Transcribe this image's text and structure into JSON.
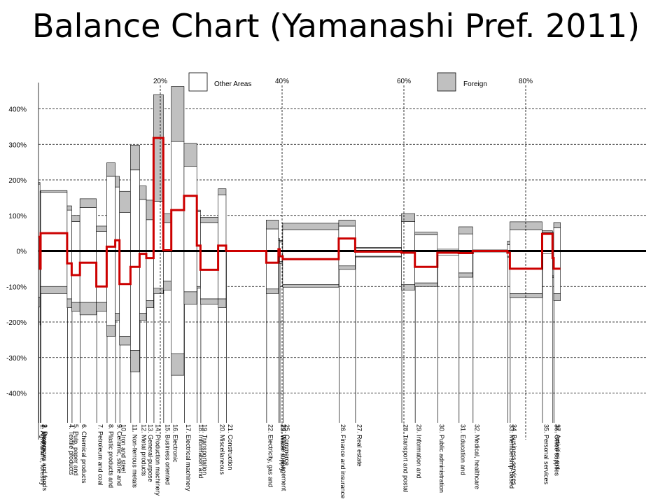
{
  "title": "Balance Chart (Yamanashi Pref. 2011)",
  "chart_data": {
    "type": "bar",
    "y_axis": {
      "ticks": [
        400,
        300,
        200,
        100,
        0,
        -100,
        -200,
        -300,
        -400
      ],
      "tick_labels": [
        "400%",
        "300%",
        "200%",
        "100%",
        "0%",
        "-100%",
        "-200%",
        "-300%",
        "-400%"
      ],
      "ylim": [
        -450,
        450
      ]
    },
    "x_axis": {
      "share_markers": [
        20,
        40,
        60,
        80
      ],
      "share_marker_labels": [
        "20%",
        "40%",
        "60%",
        "80%"
      ]
    },
    "legend": {
      "entries": [
        {
          "name": "Other Areas",
          "color": "#ffffff"
        },
        {
          "name": "Foreign",
          "color": "#c0c0c0"
        }
      ],
      "placement": "top"
    },
    "colors": {
      "balance_line": "#cc0000",
      "foreign": "#c0c0c0",
      "other_areas": "#ffffff",
      "axis": "#000000"
    },
    "series": [
      {
        "role": "other_areas_export_import"
      },
      {
        "role": "foreign_export_import"
      },
      {
        "role": "net_balance_line"
      }
    ],
    "sectors": [
      {
        "label": "1. Agriculture, forestry",
        "share": [
          0.0,
          0.25
        ],
        "oe": 188,
        "fe": 5,
        "oi": -130,
        "fi": -28,
        "net": 40
      },
      {
        "label": "2. Mining",
        "share": [
          0.25,
          0.35
        ],
        "oe": 168,
        "fe": 0,
        "oi": -200,
        "fi": -8,
        "net": -50
      },
      {
        "label": "3. Beverages and foods",
        "share": [
          0.35,
          4.7
        ],
        "oe": 165,
        "fe": 5,
        "oi": -100,
        "fi": -20,
        "net": 50
      },
      {
        "label": "4. Textile products",
        "share": [
          4.7,
          5.45
        ],
        "oe": 115,
        "fe": 12,
        "oi": -135,
        "fi": -25,
        "net": -35
      },
      {
        "label": "5. Pulp, paper and",
        "share": [
          5.45,
          6.8
        ],
        "oe": 83,
        "fe": 17,
        "oi": -145,
        "fi": -25,
        "net": -68
      },
      {
        "label": "6. Chemical products",
        "share": [
          6.8,
          9.5
        ],
        "oe": 122,
        "fe": 25,
        "oi": -145,
        "fi": -35,
        "net": -33
      },
      {
        "label": "7. Petroleum and coal",
        "share": [
          9.5,
          11.2
        ],
        "oe": 55,
        "fe": 15,
        "oi": -145,
        "fi": -25,
        "net": -100
      },
      {
        "label": "8. Plastic products and",
        "share": [
          11.2,
          12.6
        ],
        "oe": 210,
        "fe": 38,
        "oi": -210,
        "fi": -30,
        "net": 12
      },
      {
        "label": "9. Ceramic, stone and",
        "share": [
          12.6,
          13.3
        ],
        "oe": 180,
        "fe": 30,
        "oi": -175,
        "fi": -20,
        "net": 30
      },
      {
        "label": "10. Iron and steel",
        "share": [
          13.3,
          15.1
        ],
        "oe": 108,
        "fe": 60,
        "oi": -240,
        "fi": -25,
        "net": -93
      },
      {
        "label": "11. Non-ferrous metals",
        "share": [
          15.1,
          16.6
        ],
        "oe": 228,
        "fe": 70,
        "oi": -280,
        "fi": -60,
        "net": -45
      },
      {
        "label": "12. Metal products",
        "share": [
          16.6,
          17.7
        ],
        "oe": 145,
        "fe": 38,
        "oi": -175,
        "fi": -20,
        "net": -8
      },
      {
        "label": "13. General-purpose",
        "share": [
          17.7,
          18.9
        ],
        "oe": 88,
        "fe": 55,
        "oi": -140,
        "fi": -20,
        "net": -20
      },
      {
        "label": "14. Production machinery",
        "share": [
          18.9,
          20.5
        ],
        "oe": 140,
        "fe": 300,
        "oi": -105,
        "fi": -15,
        "net": 318
      },
      {
        "label": "15. Business oriented",
        "share": [
          20.5,
          21.8
        ],
        "oe": 80,
        "fe": 25,
        "oi": -85,
        "fi": -25,
        "net": 2
      },
      {
        "label": "16. Electronic",
        "share": [
          21.8,
          23.9
        ],
        "oe": 308,
        "fe": 155,
        "oi": -290,
        "fi": -60,
        "net": 115
      },
      {
        "label": "17. Electrical machinery",
        "share": [
          23.9,
          26.0
        ],
        "oe": 238,
        "fe": 65,
        "oi": -115,
        "fi": -35,
        "net": 155
      },
      {
        "label": "18. Information and",
        "share": [
          26.0,
          26.6
        ],
        "oe": 110,
        "fe": 5,
        "oi": -100,
        "fi": -5,
        "net": 15
      },
      {
        "label": "19. Transportation",
        "share": [
          26.6,
          29.5
        ],
        "oe": 80,
        "fe": 15,
        "oi": -135,
        "fi": -15,
        "net": -53
      },
      {
        "label": "20. Miscellaneous",
        "share": [
          29.5,
          30.8
        ],
        "oe": 158,
        "fe": 17,
        "oi": -135,
        "fi": -25,
        "net": 15
      },
      {
        "label": "21. Construction",
        "share": [
          30.8,
          37.4
        ],
        "oe": 2,
        "fe": 0,
        "oi": -2,
        "fi": 0,
        "net": 0
      },
      {
        "label": "22. Electricity, gas and",
        "share": [
          37.4,
          39.4
        ],
        "oe": 62,
        "fe": 25,
        "oi": -107,
        "fi": -13,
        "net": -33
      },
      {
        "label": "23. Water supply",
        "share": [
          39.4,
          39.6
        ],
        "oe": 30,
        "fe": 5,
        "oi": -15,
        "fi": 0,
        "net": 5
      },
      {
        "label": "24. Waste management",
        "share": [
          39.6,
          40.1
        ],
        "oe": 25,
        "fe": 5,
        "oi": -30,
        "fi": -5,
        "net": -15
      },
      {
        "label": "25. Commerce",
        "share": [
          40.1,
          49.3
        ],
        "oe": 60,
        "fe": 18,
        "oi": -95,
        "fi": -7,
        "net": -23
      },
      {
        "label": "26. Finance and insurance",
        "share": [
          49.3,
          52.0
        ],
        "oe": 70,
        "fe": 17,
        "oi": -42,
        "fi": -10,
        "net": 35
      },
      {
        "label": "27. Real estate",
        "share": [
          52.0,
          59.6
        ],
        "oe": 8,
        "fe": 2,
        "oi": -15,
        "fi": -2,
        "net": -2
      },
      {
        "label": "28. Transport and postal",
        "share": [
          59.6,
          61.8
        ],
        "oe": 83,
        "fe": 22,
        "oi": -95,
        "fi": -15,
        "net": -5
      },
      {
        "label": "29. Information and",
        "share": [
          61.8,
          65.5
        ],
        "oe": 45,
        "fe": 8,
        "oi": -90,
        "fi": -10,
        "net": -45
      },
      {
        "label": "30. Public administration",
        "share": [
          65.5,
          69.0
        ],
        "oe": 5,
        "fe": 0,
        "oi": -12,
        "fi": 0,
        "net": -5
      },
      {
        "label": "31. Education and",
        "share": [
          69.0,
          71.3
        ],
        "oe": 48,
        "fe": 20,
        "oi": -62,
        "fi": -12,
        "net": -6
      },
      {
        "label": "32. Medical, healthcare",
        "share": [
          71.3,
          77.0
        ],
        "oe": 3,
        "fe": 0,
        "oi": -3,
        "fi": 0,
        "net": 0
      },
      {
        "label": "33. Membership-based",
        "share": [
          77.0,
          77.4
        ],
        "oe": 18,
        "fe": 10,
        "oi": -15,
        "fi": -3,
        "net": -5
      },
      {
        "label": "34. Business services",
        "share": [
          77.4,
          82.7
        ],
        "oe": 60,
        "fe": 22,
        "oi": -120,
        "fi": -12,
        "net": -50
      },
      {
        "label": "35. Personal services",
        "share": [
          82.7,
          84.4
        ],
        "oe": 52,
        "fe": 5,
        "oi": -8,
        "fi": 0,
        "net": 48
      },
      {
        "label": "36. Office supplies",
        "share": [
          84.4,
          84.6
        ],
        "oe": 48,
        "fe": 5,
        "oi": -70,
        "fi": -5,
        "net": -20
      },
      {
        "label": "37. Activities not",
        "share": [
          84.6,
          85.7
        ],
        "oe": 65,
        "fe": 15,
        "oi": -120,
        "fi": -20,
        "net": -50
      }
    ]
  }
}
